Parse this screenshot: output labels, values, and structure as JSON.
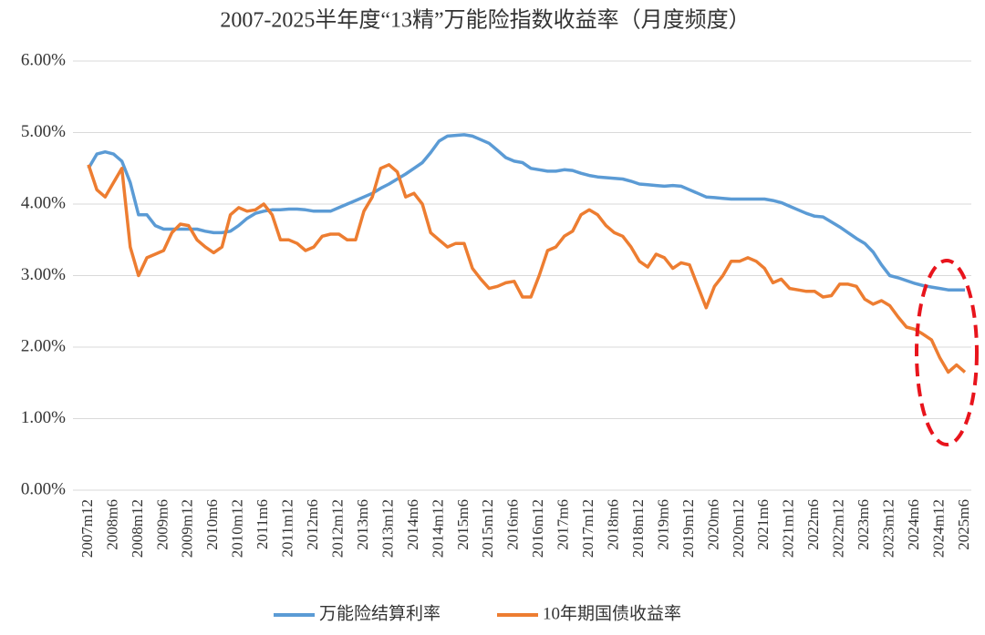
{
  "chart_data": {
    "type": "line",
    "title": "2007-2025半年度“13精”万能险指数收益率（月度频度）",
    "categories": [
      "2007m12",
      null,
      null,
      "2008m6",
      null,
      null,
      "2008m12",
      null,
      null,
      "2009m6",
      null,
      null,
      "2009m12",
      null,
      null,
      "2010m6",
      null,
      null,
      "2010m12",
      null,
      null,
      "2011m6",
      null,
      null,
      "2011m12",
      null,
      null,
      "2012m6",
      null,
      null,
      "2012m12",
      null,
      null,
      "2013m6",
      null,
      null,
      "2013m12",
      null,
      null,
      "2014m6",
      null,
      null,
      "2014m12",
      null,
      null,
      "2015m6",
      null,
      null,
      "2015m12",
      null,
      null,
      "2016m6",
      null,
      null,
      "2016m12",
      null,
      null,
      "2017m6",
      null,
      null,
      "2017m12",
      null,
      null,
      "2018m6",
      null,
      null,
      "2018m12",
      null,
      null,
      "2019m6",
      null,
      null,
      "2019m12",
      null,
      null,
      "2020m6",
      null,
      null,
      "2020m12",
      null,
      null,
      "2021m6",
      null,
      null,
      "2021m12",
      null,
      null,
      "2022m6",
      null,
      null,
      "2022m12",
      null,
      null,
      "2023m6",
      null,
      null,
      "2023m12",
      null,
      null,
      "2024m6",
      null,
      null,
      "2024m12",
      null,
      null,
      "2025m6"
    ],
    "series": [
      {
        "name": "万能险结算利率",
        "color": "#5b9bd5",
        "values": [
          4.5,
          4.7,
          4.73,
          4.7,
          4.6,
          4.3,
          3.85,
          3.85,
          3.7,
          3.65,
          3.65,
          3.65,
          3.65,
          3.65,
          3.62,
          3.6,
          3.6,
          3.62,
          3.7,
          3.8,
          3.87,
          3.9,
          3.92,
          3.92,
          3.93,
          3.93,
          3.92,
          3.9,
          3.9,
          3.9,
          3.95,
          4.0,
          4.05,
          4.1,
          4.15,
          4.22,
          4.28,
          4.35,
          4.42,
          4.5,
          4.58,
          4.72,
          4.88,
          4.95,
          4.96,
          4.97,
          4.95,
          4.9,
          4.85,
          4.75,
          4.65,
          4.6,
          4.58,
          4.5,
          4.48,
          4.46,
          4.46,
          4.48,
          4.47,
          4.43,
          4.4,
          4.38,
          4.37,
          4.36,
          4.35,
          4.32,
          4.28,
          4.27,
          4.26,
          4.25,
          4.26,
          4.25,
          4.2,
          4.15,
          4.1,
          4.09,
          4.08,
          4.07,
          4.07,
          4.07,
          4.07,
          4.07,
          4.05,
          4.02,
          3.97,
          3.92,
          3.87,
          3.83,
          3.82,
          3.75,
          3.68,
          3.6,
          3.52,
          3.45,
          3.33,
          3.15,
          3.0,
          2.97,
          2.93,
          2.89,
          2.86,
          2.84,
          2.82,
          2.8,
          2.8,
          2.8
        ]
      },
      {
        "name": "10年期国债收益率",
        "color": "#ed7d31",
        "values": [
          4.55,
          4.2,
          4.1,
          4.3,
          4.5,
          3.4,
          3.0,
          3.25,
          3.3,
          3.35,
          3.6,
          3.72,
          3.7,
          3.5,
          3.4,
          3.32,
          3.4,
          3.85,
          3.95,
          3.9,
          3.92,
          4.0,
          3.85,
          3.5,
          3.5,
          3.45,
          3.35,
          3.4,
          3.55,
          3.58,
          3.58,
          3.5,
          3.5,
          3.9,
          4.1,
          4.5,
          4.55,
          4.45,
          4.1,
          4.15,
          4.0,
          3.6,
          3.5,
          3.4,
          3.45,
          3.45,
          3.1,
          2.95,
          2.82,
          2.85,
          2.9,
          2.92,
          2.7,
          2.7,
          3.0,
          3.35,
          3.4,
          3.55,
          3.62,
          3.85,
          3.92,
          3.85,
          3.7,
          3.6,
          3.55,
          3.4,
          3.2,
          3.12,
          3.3,
          3.25,
          3.1,
          3.18,
          3.15,
          2.85,
          2.55,
          2.85,
          3.0,
          3.2,
          3.2,
          3.25,
          3.2,
          3.1,
          2.9,
          2.95,
          2.82,
          2.8,
          2.78,
          2.78,
          2.7,
          2.72,
          2.88,
          2.88,
          2.85,
          2.67,
          2.6,
          2.65,
          2.58,
          2.42,
          2.28,
          2.25,
          2.18,
          2.1,
          1.85,
          1.65,
          1.75,
          1.65
        ]
      }
    ],
    "ylim": [
      0,
      6
    ],
    "yticks": [
      {
        "value": 0,
        "label": "0.00%"
      },
      {
        "value": 1,
        "label": "1.00%"
      },
      {
        "value": 2,
        "label": "2.00%"
      },
      {
        "value": 3,
        "label": "3.00%"
      },
      {
        "value": 4,
        "label": "4.00%"
      },
      {
        "value": 5,
        "label": "5.00%"
      },
      {
        "value": 6,
        "label": "6.00%"
      }
    ],
    "grid": true,
    "legend": "bottom"
  }
}
